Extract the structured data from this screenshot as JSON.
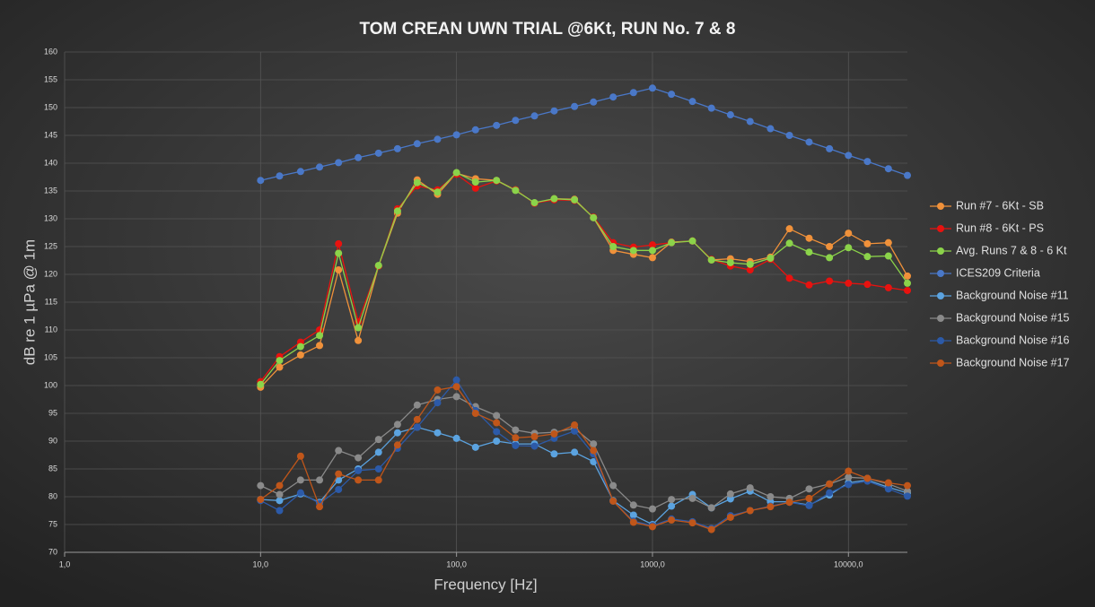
{
  "chart_data": {
    "type": "line",
    "title": "TOM CREAN UWN TRIAL @6Kt, RUN No. 7 & 8",
    "x_label": "Frequency [Hz]",
    "y_label": "dB re 1 µPa @ 1m",
    "xscale": "log",
    "grid": true,
    "legend": "right",
    "xlim": [
      1,
      20000
    ],
    "xticks": [
      {
        "value": 1,
        "label": "1,0"
      },
      {
        "value": 10,
        "label": "10,0"
      },
      {
        "value": 100,
        "label": "100,0"
      },
      {
        "value": 1000,
        "label": "1000,0"
      },
      {
        "value": 10000,
        "label": "10000,0"
      }
    ],
    "ylim": [
      70,
      160
    ],
    "yticks": [
      70,
      75,
      80,
      85,
      90,
      95,
      100,
      105,
      110,
      115,
      120,
      125,
      130,
      135,
      140,
      145,
      150,
      155,
      160
    ],
    "x": [
      10,
      12.5,
      16,
      20,
      25,
      31.5,
      40,
      50,
      63,
      80,
      100,
      125,
      160,
      200,
      250,
      315,
      400,
      500,
      630,
      800,
      1000,
      1250,
      1600,
      2000,
      2500,
      3150,
      4000,
      5000,
      6300,
      8000,
      10000,
      12500,
      16000,
      20000
    ],
    "series": [
      {
        "name": "Run #7 - 6Kt - SB",
        "color": "#f0913a",
        "values": [
          99.7,
          103.3,
          105.5,
          107.2,
          120.8,
          108.1,
          121.5,
          131,
          137,
          134.4,
          138.2,
          137.2,
          136.9,
          135.2,
          132.8,
          133.6,
          133.5,
          130.2,
          124.3,
          123.6,
          123,
          125.8,
          126,
          122.6,
          122.8,
          122.3,
          123.1,
          128.2,
          126.5,
          125,
          127.4,
          125.5,
          125.7,
          119.7
        ]
      },
      {
        "name": "Run #8 - 6Kt - PS",
        "color": "#e8120f",
        "values": [
          100.7,
          105.2,
          107.8,
          110,
          125.5,
          111.5,
          121.5,
          131.8,
          135.9,
          135.2,
          138,
          135.5,
          136.8,
          135.2,
          132.8,
          133.4,
          133.3,
          130.3,
          125.7,
          124.9,
          125.3,
          125.7,
          126,
          122.7,
          121.5,
          120.8,
          122.7,
          119.3,
          118.1,
          118.8,
          118.4,
          118.2,
          117.6,
          117.1
        ]
      },
      {
        "name": "Avg. Runs 7 & 8 - 6 Kt",
        "color": "#8bd34a",
        "values": [
          100.2,
          104.5,
          107,
          109,
          123.8,
          110.4,
          121.6,
          131.4,
          136.5,
          134.8,
          138.3,
          136.6,
          136.9,
          135.1,
          132.9,
          133.6,
          133.4,
          130.2,
          125,
          124.3,
          124.3,
          125.7,
          126,
          122.6,
          122.1,
          121.8,
          122.9,
          125.6,
          124,
          123,
          124.8,
          123.2,
          123.3,
          118.4
        ]
      },
      {
        "name": "ICES209 Criteria",
        "color": "#4a78c8",
        "values": [
          136.9,
          137.7,
          138.5,
          139.3,
          140.1,
          141,
          141.8,
          142.6,
          143.5,
          144.3,
          145.1,
          146,
          146.8,
          147.7,
          148.5,
          149.4,
          150.2,
          151,
          151.9,
          152.7,
          153.5,
          152.4,
          151.1,
          149.9,
          148.7,
          147.5,
          146.2,
          145,
          143.8,
          142.6,
          141.4,
          140.3,
          139,
          137.8
        ]
      },
      {
        "name": "Background Noise #11",
        "color": "#5ba3e0",
        "values": [
          79.5,
          79.3,
          80.5,
          79,
          83,
          85,
          88,
          91.5,
          92.5,
          91.5,
          90.5,
          88.9,
          90,
          89.5,
          89.5,
          87.7,
          88,
          86.3,
          79.3,
          76.7,
          75,
          78.3,
          80.4,
          78,
          79.6,
          81,
          79.1,
          79.1,
          78.5,
          80.3,
          82.5,
          83,
          81.7,
          80.7
        ]
      },
      {
        "name": "Background Noise #15",
        "color": "#8a8a8a",
        "values": [
          82,
          80.4,
          83,
          83,
          88.3,
          87,
          90.3,
          93,
          96.5,
          97.5,
          98,
          96.2,
          94.6,
          92,
          91.4,
          91.6,
          92.3,
          89.5,
          82,
          78.5,
          77.8,
          79.5,
          79.7,
          78,
          80.5,
          81.6,
          80,
          79.7,
          81.4,
          82.3,
          83.5,
          83.3,
          82.3,
          81
        ]
      },
      {
        "name": "Background Noise #16",
        "color": "#2c5aa8",
        "values": [
          79.3,
          77.5,
          80.7,
          78.8,
          81.3,
          84.7,
          85,
          88.7,
          92.5,
          96.9,
          101,
          95.5,
          91.7,
          89.2,
          89.1,
          90.5,
          91.8,
          87.7,
          79.2,
          75.6,
          74.8,
          76,
          75.5,
          74.3,
          76.6,
          77.5,
          78.3,
          79,
          78.4,
          80.7,
          82.2,
          82.8,
          81.4,
          80.1
        ]
      },
      {
        "name": "Background Noise #17",
        "color": "#c0561a",
        "values": [
          79.5,
          82,
          87.3,
          78.2,
          84.1,
          83,
          83,
          89.3,
          93.9,
          99.2,
          99.8,
          95,
          93.3,
          90.6,
          90.8,
          91.3,
          92.9,
          88.3,
          79.2,
          75.4,
          74.6,
          75.8,
          75.3,
          74.1,
          76.3,
          77.5,
          78.2,
          79,
          79.7,
          82.3,
          84.6,
          83.3,
          82.5,
          82
        ]
      }
    ]
  }
}
